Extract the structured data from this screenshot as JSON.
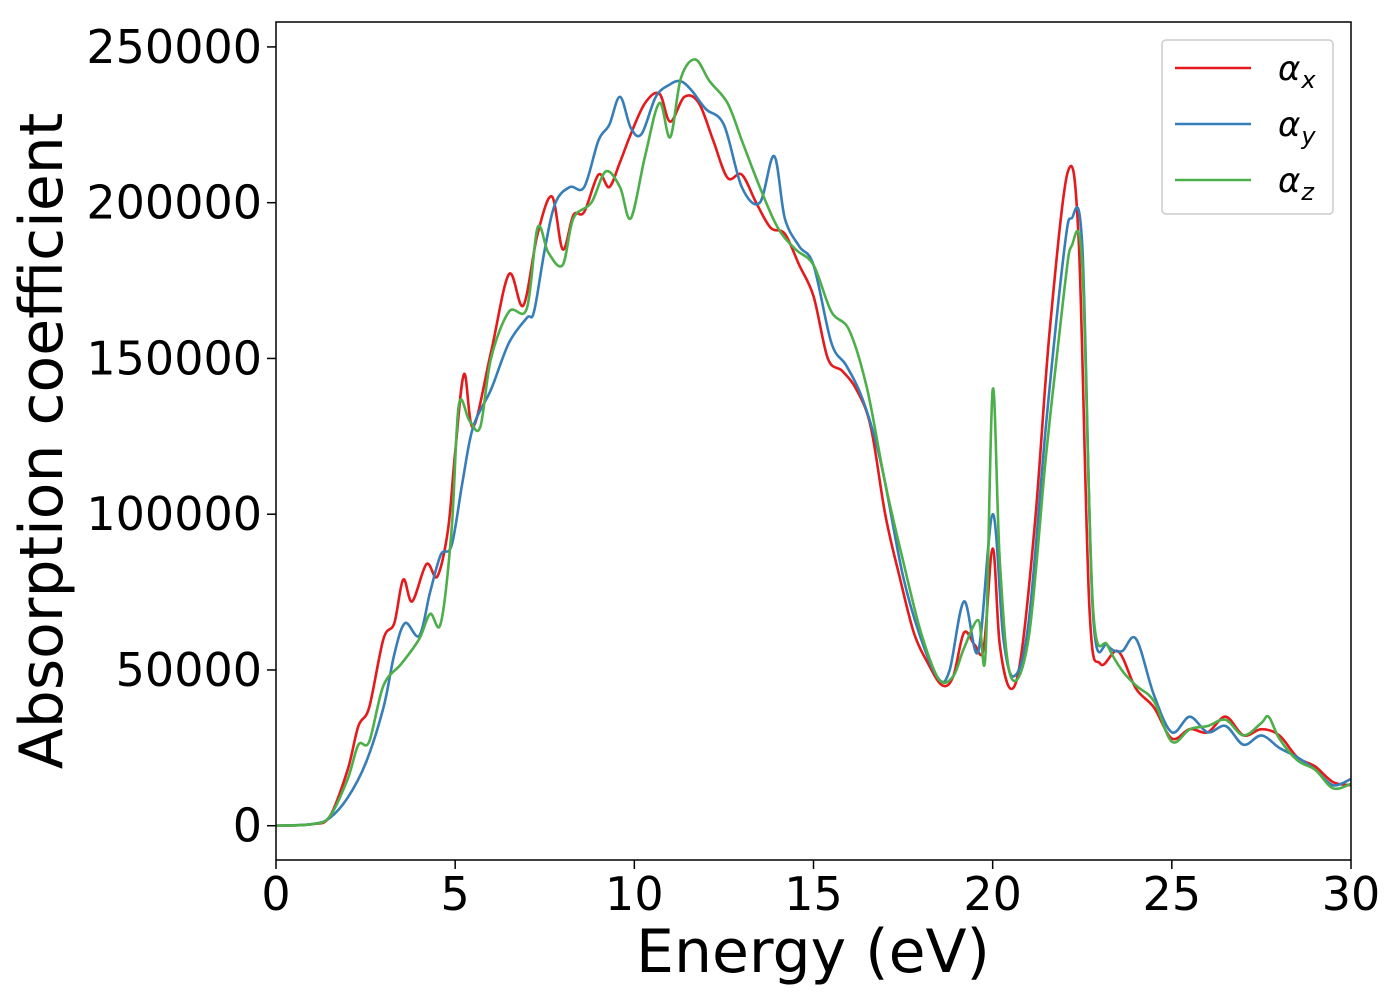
{
  "chart_data": {
    "type": "line",
    "xlabel": "Energy (eV)",
    "ylabel": "Absorption coefficient",
    "xlim": [
      0,
      30
    ],
    "ylim": [
      -11000,
      258000
    ],
    "xticks": [
      0,
      5,
      10,
      15,
      20,
      25,
      30
    ],
    "yticks": [
      0,
      50000,
      100000,
      150000,
      200000,
      250000
    ],
    "grid": false,
    "legend_position": "top-right",
    "series": [
      {
        "name": "α_x",
        "label_main": "α",
        "label_sub": "x",
        "color": "#e41a1c",
        "x": [
          0,
          1.0,
          1.5,
          2.0,
          2.3,
          2.6,
          3.0,
          3.3,
          3.55,
          3.8,
          4.2,
          4.5,
          4.8,
          5.0,
          5.25,
          5.5,
          6.0,
          6.5,
          6.9,
          7.3,
          7.7,
          8.0,
          8.3,
          8.6,
          9.0,
          9.3,
          9.6,
          9.9,
          10.3,
          10.7,
          11.0,
          11.4,
          11.8,
          12.2,
          12.6,
          13.0,
          13.4,
          13.8,
          14.2,
          14.6,
          15.0,
          15.4,
          15.8,
          16.2,
          16.6,
          17.0,
          17.4,
          17.8,
          18.2,
          18.6,
          18.9,
          19.2,
          19.5,
          19.75,
          20.0,
          20.2,
          20.5,
          20.8,
          21.2,
          21.6,
          22.1,
          22.4,
          22.7,
          23.0,
          23.5,
          24.0,
          24.5,
          25.0,
          25.5,
          26.0,
          26.5,
          27.0,
          27.5,
          28.0,
          28.5,
          29.0,
          29.5,
          30.0
        ],
        "y": [
          0,
          500,
          3000,
          18000,
          32000,
          38000,
          60000,
          65000,
          79000,
          72000,
          84000,
          80000,
          95000,
          120000,
          145000,
          128000,
          152000,
          177000,
          167000,
          190000,
          202000,
          185000,
          196000,
          197000,
          209000,
          205000,
          213000,
          222000,
          232000,
          235000,
          226000,
          234000,
          232000,
          220000,
          208000,
          209000,
          200000,
          192000,
          190000,
          180000,
          170000,
          150000,
          146000,
          140000,
          128000,
          100000,
          80000,
          62000,
          52000,
          45000,
          48000,
          62000,
          58000,
          57000,
          89000,
          58000,
          44000,
          55000,
          100000,
          160000,
          210000,
          188000,
          70000,
          52000,
          56000,
          44000,
          38000,
          28000,
          31000,
          30000,
          35000,
          29000,
          31000,
          29000,
          22000,
          19000,
          14000,
          13000
        ]
      },
      {
        "name": "α_y",
        "label_main": "α",
        "label_sub": "y",
        "color": "#377eb8",
        "x": [
          0,
          1.0,
          1.5,
          2.0,
          2.5,
          3.0,
          3.3,
          3.6,
          4.0,
          4.3,
          4.6,
          4.9,
          5.2,
          5.5,
          6.0,
          6.5,
          7.0,
          7.2,
          7.5,
          7.8,
          8.2,
          8.6,
          9.0,
          9.3,
          9.6,
          9.9,
          10.2,
          10.6,
          11.0,
          11.3,
          11.6,
          12.0,
          12.5,
          13.0,
          13.5,
          13.9,
          14.2,
          14.6,
          15.0,
          15.5,
          15.9,
          16.3,
          16.7,
          17.0,
          17.5,
          18.0,
          18.5,
          18.8,
          19.2,
          19.6,
          20.0,
          20.3,
          20.6,
          21.0,
          21.5,
          22.0,
          22.2,
          22.5,
          22.8,
          23.2,
          23.6,
          24.0,
          24.5,
          25.0,
          25.5,
          26.0,
          26.5,
          27.0,
          27.5,
          28.0,
          28.5,
          29.0,
          29.5,
          30.0
        ],
        "y": [
          0,
          500,
          2500,
          9000,
          20000,
          38000,
          55000,
          65000,
          61000,
          75000,
          87000,
          90000,
          110000,
          128000,
          140000,
          155000,
          163000,
          165000,
          185000,
          200000,
          205000,
          205000,
          220000,
          225000,
          234000,
          224000,
          222000,
          234000,
          238000,
          239000,
          236000,
          230000,
          225000,
          205000,
          200000,
          215000,
          195000,
          186000,
          180000,
          155000,
          148000,
          139000,
          125000,
          110000,
          80000,
          60000,
          47000,
          50000,
          72000,
          56000,
          100000,
          60000,
          48000,
          65000,
          130000,
          185000,
          195000,
          186000,
          68000,
          58000,
          56000,
          60000,
          42000,
          30000,
          35000,
          30000,
          32000,
          26000,
          29000,
          25000,
          22000,
          18000,
          13000,
          15000
        ]
      },
      {
        "name": "α_z",
        "label_main": "α",
        "label_sub": "z",
        "color": "#4daf4a",
        "x": [
          0,
          1.0,
          1.5,
          2.0,
          2.3,
          2.6,
          3.0,
          3.5,
          4.0,
          4.3,
          4.6,
          4.9,
          5.1,
          5.4,
          5.7,
          6.0,
          6.5,
          7.0,
          7.3,
          7.6,
          8.0,
          8.3,
          8.8,
          9.2,
          9.6,
          9.9,
          10.3,
          10.7,
          11.0,
          11.3,
          11.7,
          12.1,
          12.6,
          13.0,
          13.5,
          14.0,
          14.5,
          15.0,
          15.5,
          16.0,
          16.5,
          17.0,
          17.5,
          18.0,
          18.5,
          18.9,
          19.2,
          19.6,
          19.8,
          20.0,
          20.2,
          20.5,
          21.0,
          21.5,
          22.0,
          22.2,
          22.5,
          22.8,
          23.2,
          23.6,
          24.0,
          24.5,
          25.0,
          25.5,
          26.0,
          26.5,
          27.0,
          27.5,
          27.7,
          28.0,
          28.5,
          29.0,
          29.5,
          30.0
        ],
        "y": [
          0,
          500,
          3000,
          15000,
          26000,
          27000,
          45000,
          52000,
          60000,
          68000,
          65000,
          95000,
          135000,
          130000,
          128000,
          150000,
          165000,
          166000,
          192000,
          184000,
          180000,
          195000,
          200000,
          210000,
          205000,
          195000,
          215000,
          232000,
          221000,
          240000,
          246000,
          239000,
          232000,
          220000,
          205000,
          192000,
          185000,
          180000,
          165000,
          159000,
          140000,
          110000,
          85000,
          62000,
          47000,
          48000,
          57000,
          66000,
          55000,
          140000,
          85000,
          48000,
          60000,
          120000,
          172000,
          186000,
          180000,
          70000,
          58000,
          50000,
          45000,
          40000,
          27000,
          31000,
          32000,
          34000,
          29000,
          33000,
          35000,
          28000,
          21000,
          18000,
          12000,
          13500
        ]
      }
    ]
  }
}
